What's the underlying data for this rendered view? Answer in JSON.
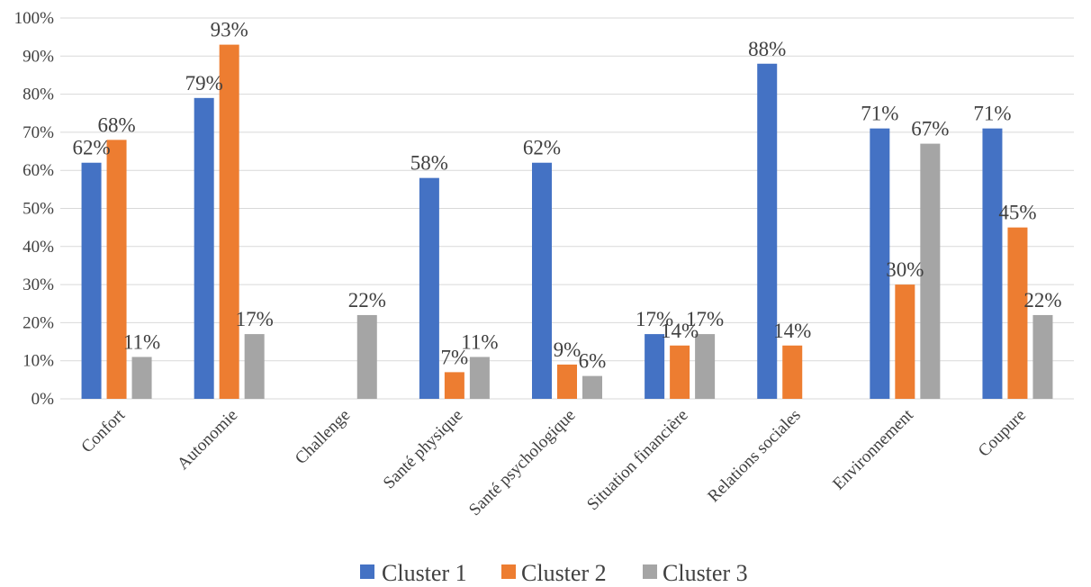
{
  "chart_data": {
    "type": "bar",
    "title": "",
    "xlabel": "",
    "ylabel": "",
    "ylim": [
      0,
      100
    ],
    "y_ticks": [
      "0%",
      "10%",
      "20%",
      "30%",
      "40%",
      "50%",
      "60%",
      "70%",
      "80%",
      "90%",
      "100%"
    ],
    "grid": true,
    "legend_position": "bottom",
    "categories": [
      "Confort",
      "Autonomie",
      "Challenge",
      "Santé physique",
      "Santé psychologique",
      "Situation financière",
      "Relations sociales",
      "Environnement",
      "Coupure"
    ],
    "series": [
      {
        "name": "Cluster 1",
        "color": "#4472c4",
        "values": [
          62,
          79,
          0,
          58,
          62,
          17,
          88,
          71,
          71
        ],
        "labels": [
          "62%",
          "79%",
          "",
          "58%",
          "62%",
          "17%",
          "88%",
          "71%",
          "71%"
        ]
      },
      {
        "name": "Cluster 2",
        "color": "#ed7d31",
        "values": [
          68,
          93,
          0,
          7,
          9,
          14,
          14,
          30,
          45
        ],
        "labels": [
          "68%",
          "93%",
          "",
          "7%",
          "9%",
          "14%",
          "14%",
          "30%",
          "45%"
        ]
      },
      {
        "name": "Cluster 3",
        "color": "#a5a5a5",
        "values": [
          11,
          17,
          22,
          11,
          6,
          17,
          0,
          67,
          22
        ],
        "labels": [
          "11%",
          "17%",
          "22%",
          "11%",
          "6%",
          "17%",
          "",
          "67%",
          "22%"
        ]
      }
    ]
  }
}
